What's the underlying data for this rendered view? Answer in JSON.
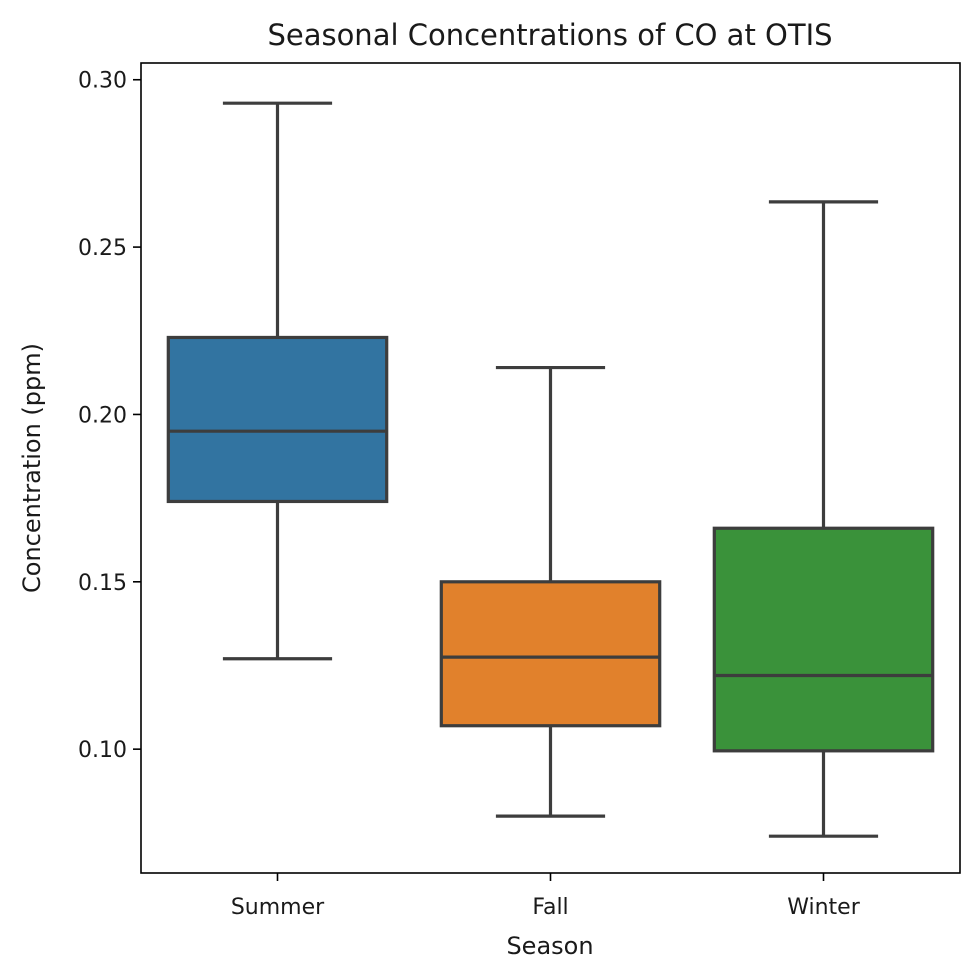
{
  "chart_data": {
    "type": "box",
    "title": "Seasonal Concentrations of CO at OTIS",
    "xlabel": "Season",
    "ylabel": "Concentration (ppm)",
    "ylim": [
      0.063,
      0.305
    ],
    "yticks": [
      0.1,
      0.15,
      0.2,
      0.25,
      0.3
    ],
    "ytick_labels": [
      "0.10",
      "0.15",
      "0.20",
      "0.25",
      "0.30"
    ],
    "grid": false,
    "categories": [
      "Summer",
      "Fall",
      "Winter"
    ],
    "series": [
      {
        "category": "Summer",
        "whisker_low": 0.127,
        "q1": 0.174,
        "median": 0.195,
        "q3": 0.223,
        "whisker_high": 0.293,
        "color": "#3274a1"
      },
      {
        "category": "Fall",
        "whisker_low": 0.08,
        "q1": 0.107,
        "median": 0.1275,
        "q3": 0.15,
        "whisker_high": 0.214,
        "color": "#e1812c"
      },
      {
        "category": "Winter",
        "whisker_low": 0.074,
        "q1": 0.0995,
        "median": 0.122,
        "q3": 0.166,
        "whisker_high": 0.2635,
        "color": "#3a923a"
      }
    ],
    "line_color": "#3d3d3d"
  }
}
